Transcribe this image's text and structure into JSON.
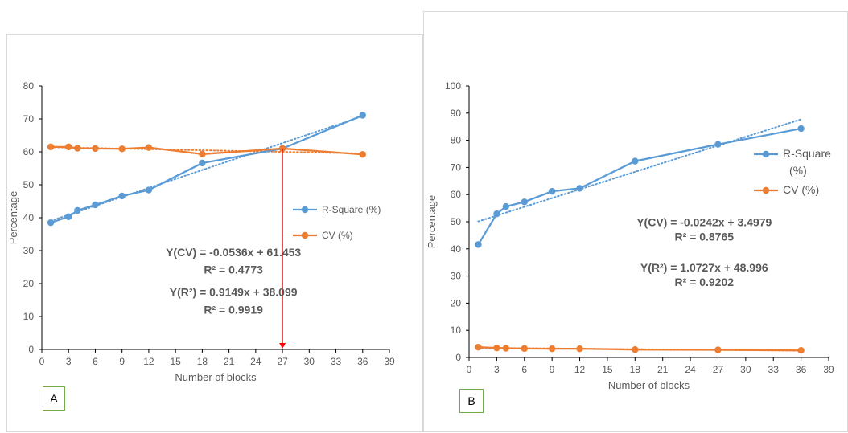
{
  "colors": {
    "r_square": "#5b9bd5",
    "cv": "#ed7d31",
    "marker_line": "#ff0000",
    "label_border": "#70ad47"
  },
  "chart_data": [
    {
      "type": "line",
      "panel_label": "A",
      "xlabel": "Number of blocks",
      "ylabel": "Percentage",
      "xlim": [
        0,
        39
      ],
      "ylim": [
        0,
        80
      ],
      "x_ticks": [
        0,
        3,
        6,
        9,
        12,
        15,
        18,
        21,
        24,
        27,
        30,
        33,
        36,
        39
      ],
      "y_ticks": [
        0,
        10,
        20,
        30,
        40,
        50,
        60,
        70,
        80
      ],
      "legend_position": "right",
      "series": [
        {
          "name": "R-Square (%)",
          "color": "#5b9bd5",
          "trendline": true,
          "x": [
            1,
            3,
            4,
            6,
            9,
            12,
            18,
            27,
            36
          ],
          "values": [
            38.5,
            40.3,
            42.2,
            43.9,
            46.6,
            48.4,
            56.6,
            61.0,
            71.1
          ]
        },
        {
          "name": "CV (%)",
          "color": "#ed7d31",
          "trendline": true,
          "x": [
            1,
            3,
            4,
            6,
            9,
            12,
            18,
            27,
            36
          ],
          "values": [
            61.5,
            61.5,
            61.1,
            61.0,
            60.9,
            61.3,
            59.3,
            61.0,
            59.2
          ]
        }
      ],
      "annotations": [
        {
          "text": "Y(CV) = -0.0536x + 61.453",
          "x": 21.5,
          "y": 28.3
        },
        {
          "text": "R² = 0.4773",
          "x": 21.5,
          "y": 23.0
        },
        {
          "text": "Y(R²) = 0.9149x + 38.099",
          "x": 21.5,
          "y": 16.2
        },
        {
          "text": "R² = 0.9919",
          "x": 21.5,
          "y": 10.9
        }
      ],
      "marker_x": 27,
      "marker_y": 61
    },
    {
      "type": "line",
      "panel_label": "B",
      "xlabel": "Number of blocks",
      "ylabel": "Percentage",
      "xlim": [
        0,
        39
      ],
      "ylim": [
        0,
        100
      ],
      "x_ticks": [
        0,
        3,
        6,
        9,
        12,
        15,
        18,
        21,
        24,
        27,
        30,
        33,
        36,
        39
      ],
      "y_ticks": [
        0,
        10,
        20,
        30,
        40,
        50,
        60,
        70,
        80,
        90,
        100
      ],
      "legend_position": "right",
      "series": [
        {
          "name": "R-Square (%)",
          "color": "#5b9bd5",
          "trendline": true,
          "x": [
            1,
            3,
            4,
            6,
            9,
            12,
            18,
            27,
            36
          ],
          "values": [
            41.6,
            52.9,
            55.6,
            57.3,
            61.2,
            62.3,
            72.3,
            78.5,
            84.3
          ]
        },
        {
          "name": "CV (%)",
          "color": "#ed7d31",
          "trendline": true,
          "x": [
            1,
            3,
            4,
            6,
            9,
            12,
            18,
            27,
            36
          ],
          "values": [
            3.8,
            3.5,
            3.4,
            3.3,
            3.2,
            3.2,
            2.9,
            2.8,
            2.6
          ]
        }
      ],
      "annotations": [
        {
          "text": "Y(CV) = -0.0242x + 3.4979",
          "x": 25.5,
          "y": 48.3
        },
        {
          "text": "R² = 0.8765",
          "x": 25.5,
          "y": 43.0
        },
        {
          "text": "Y(R²) = 1.0727x + 48.996",
          "x": 25.5,
          "y": 31.6
        },
        {
          "text": "R² = 0.9202",
          "x": 25.5,
          "y": 26.3
        }
      ]
    }
  ]
}
